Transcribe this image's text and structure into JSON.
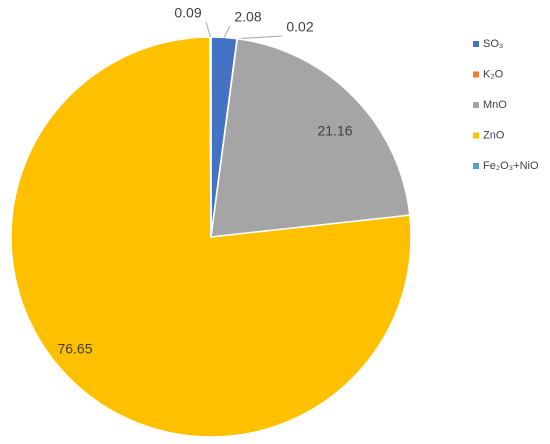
{
  "chart_data": {
    "type": "pie",
    "categories": [
      "SO₃",
      "K₂O",
      "MnO",
      "ZnO",
      "Fe₂O₃+NiO"
    ],
    "values": [
      2.08,
      0.02,
      21.16,
      76.65,
      0.09
    ],
    "colors": [
      "#4472c4",
      "#ed7d31",
      "#a5a5a5",
      "#ffc000",
      "#5b9bd5"
    ],
    "legend": "right"
  }
}
